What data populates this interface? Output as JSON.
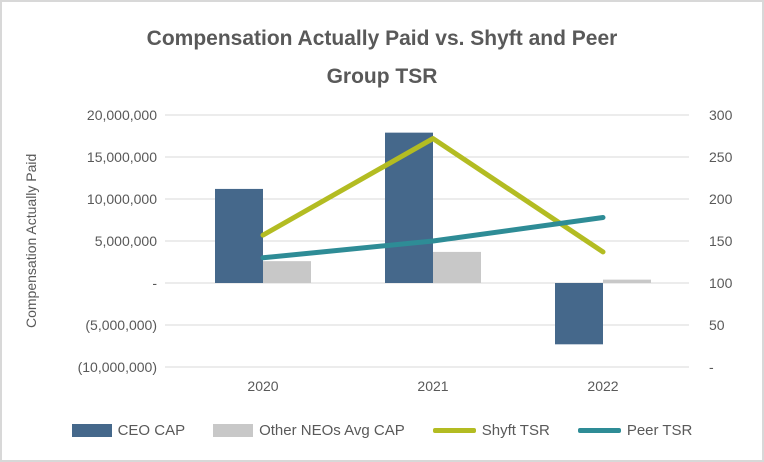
{
  "title": {
    "full": "Compensation Actually Paid vs. Shyft and Peer Group TSR",
    "line1": "Compensation Actually Paid vs. Shyft and Peer",
    "line2": "Group TSR"
  },
  "colors": {
    "ceo_cap_bar": "#45688B",
    "other_neos_bar": "#C8C8C8",
    "shyft_tsr_line": "#B3BC22",
    "peer_tsr_line": "#2E8C96",
    "gridline": "#D9D9D9",
    "text": "#595959",
    "chart_border": "#D8D8D8"
  },
  "chart_data": {
    "type": "combo",
    "subtype": "bars-and-lines",
    "title": "Compensation Actually Paid vs. Shyft and Peer Group TSR",
    "categories": [
      "2020",
      "2021",
      "2022"
    ],
    "series": [
      {
        "name": "CEO CAP",
        "type": "bar",
        "axis": "left",
        "color": "#45688B",
        "values": [
          11200000,
          17900000,
          -7300000
        ]
      },
      {
        "name": "Other NEOs Avg CAP",
        "type": "bar",
        "axis": "left",
        "color": "#C8C8C8",
        "values": [
          2600000,
          3700000,
          400000
        ]
      },
      {
        "name": "Shyft TSR",
        "type": "line",
        "axis": "right",
        "color": "#B3BC22",
        "values": [
          157,
          272,
          137
        ]
      },
      {
        "name": "Peer TSR",
        "type": "line",
        "axis": "right",
        "color": "#2E8C96",
        "values": [
          130,
          150,
          178
        ]
      }
    ],
    "left_axis": {
      "label": "Compensation Actually Paid",
      "min": -10000000,
      "max": 20000000,
      "step": 5000000,
      "tick_labels": [
        "20,000,000",
        "15,000,000",
        "10,000,000",
        "5,000,000",
        "-",
        "(5,000,000)",
        "(10,000,000)"
      ]
    },
    "right_axis": {
      "label": "",
      "min": 0,
      "max": 300,
      "step": 50,
      "tick_labels": [
        "300",
        "250",
        "200",
        "150",
        "100",
        "50",
        "-"
      ]
    },
    "grid": true,
    "legend_position": "bottom"
  }
}
